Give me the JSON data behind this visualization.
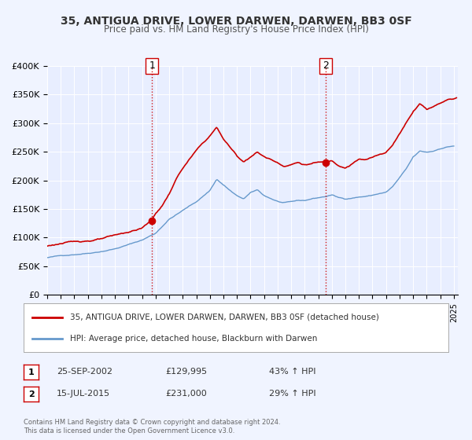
{
  "title": "35, ANTIGUA DRIVE, LOWER DARWEN, DARWEN, BB3 0SF",
  "subtitle": "Price paid vs. HM Land Registry's House Price Index (HPI)",
  "hpi_label": "HPI: Average price, detached house, Blackburn with Darwen",
  "property_label": "35, ANTIGUA DRIVE, LOWER DARWEN, DARWEN, BB3 0SF (detached house)",
  "sale1_date": "25-SEP-2002",
  "sale1_price": 129995,
  "sale1_hpi": "43% ↑ HPI",
  "sale1_x": 2002.73,
  "sale2_date": "15-JUL-2015",
  "sale2_price": 231000,
  "sale2_hpi": "29% ↑ HPI",
  "sale2_x": 2015.54,
  "ylim": [
    0,
    400000
  ],
  "xlim_start": 1995.0,
  "xlim_end": 2025.3,
  "background_color": "#f0f4ff",
  "plot_bg_color": "#e8eeff",
  "red_line_color": "#cc0000",
  "blue_line_color": "#6699cc",
  "sale_marker_color": "#cc0000",
  "vline_color": "#cc0000",
  "grid_color": "#ffffff",
  "legend_box_color": "#cc0000",
  "annotation_bg": "#e8f0ff"
}
